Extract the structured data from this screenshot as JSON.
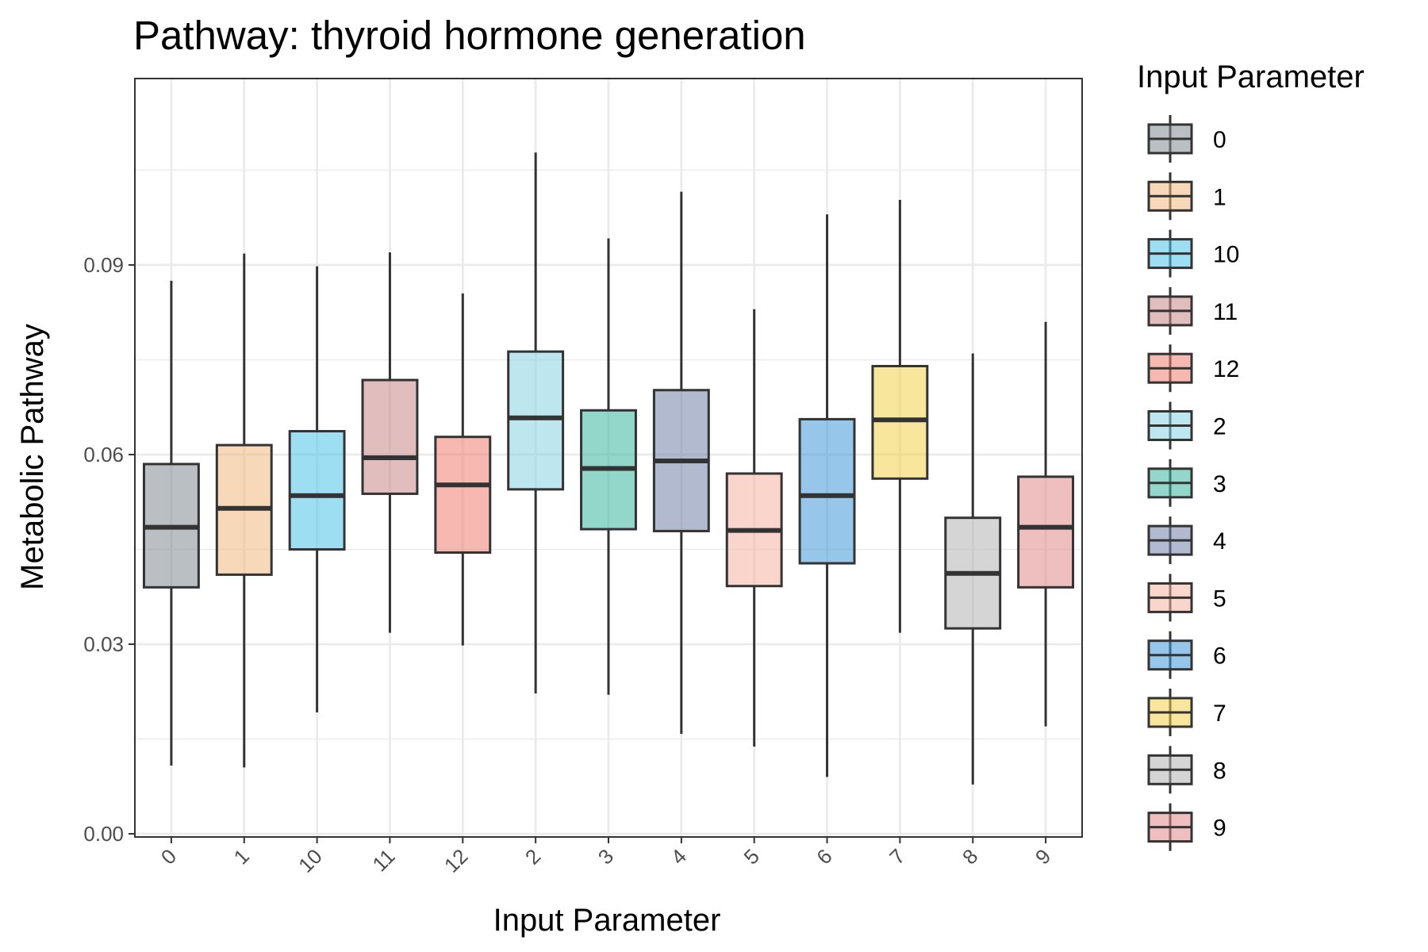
{
  "chart_data": {
    "type": "boxplot",
    "title": "Pathway: thyroid hormone generation",
    "xlabel": "Input Parameter",
    "ylabel": "Metabolic Pathway",
    "ylim": [
      -0.0005,
      0.1195
    ],
    "y_ticks": [
      0.0,
      0.03,
      0.06,
      0.09
    ],
    "y_tick_labels": [
      "0.00",
      "0.03",
      "0.06",
      "0.09"
    ],
    "grid": true,
    "legend": {
      "title": "Input Parameter",
      "position": "right"
    },
    "categories": [
      "0",
      "1",
      "10",
      "11",
      "12",
      "2",
      "3",
      "4",
      "5",
      "6",
      "7",
      "8",
      "9"
    ],
    "series": [
      {
        "category": "0",
        "color": "#7f8a90",
        "min": 0.0108,
        "q1": 0.039,
        "median": 0.0485,
        "q3": 0.0585,
        "max": 0.0875
      },
      {
        "category": "1",
        "color": "#f0b880",
        "min": 0.0105,
        "q1": 0.041,
        "median": 0.0515,
        "q3": 0.0615,
        "max": 0.0918
      },
      {
        "category": "10",
        "color": "#4fc3e8",
        "min": 0.0192,
        "q1": 0.045,
        "median": 0.0535,
        "q3": 0.0637,
        "max": 0.0898
      },
      {
        "category": "11",
        "color": "#c98686",
        "min": 0.0318,
        "q1": 0.0538,
        "median": 0.0595,
        "q3": 0.0718,
        "max": 0.092
      },
      {
        "category": "12",
        "color": "#ef7d6f",
        "min": 0.0298,
        "q1": 0.0445,
        "median": 0.0552,
        "q3": 0.0628,
        "max": 0.0855
      },
      {
        "category": "2",
        "color": "#86d2e2",
        "min": 0.0222,
        "q1": 0.0545,
        "median": 0.0658,
        "q3": 0.0763,
        "max": 0.1078
      },
      {
        "category": "3",
        "color": "#38b79e",
        "min": 0.022,
        "q1": 0.0482,
        "median": 0.0578,
        "q3": 0.067,
        "max": 0.0942
      },
      {
        "category": "4",
        "color": "#7181a8",
        "min": 0.0158,
        "q1": 0.0479,
        "median": 0.059,
        "q3": 0.0702,
        "max": 0.1016
      },
      {
        "category": "5",
        "color": "#f6b3a2",
        "min": 0.0138,
        "q1": 0.0392,
        "median": 0.048,
        "q3": 0.057,
        "max": 0.083
      },
      {
        "category": "6",
        "color": "#3f97d9",
        "min": 0.009,
        "q1": 0.0428,
        "median": 0.0535,
        "q3": 0.0656,
        "max": 0.098
      },
      {
        "category": "7",
        "color": "#f3d14a",
        "min": 0.0318,
        "q1": 0.0562,
        "median": 0.0655,
        "q3": 0.074,
        "max": 0.1003
      },
      {
        "category": "8",
        "color": "#b3b3b3",
        "min": 0.0078,
        "q1": 0.0325,
        "median": 0.0412,
        "q3": 0.05,
        "max": 0.076
      },
      {
        "category": "9",
        "color": "#e08a88",
        "min": 0.017,
        "q1": 0.039,
        "median": 0.0485,
        "q3": 0.0565,
        "max": 0.081
      }
    ]
  }
}
